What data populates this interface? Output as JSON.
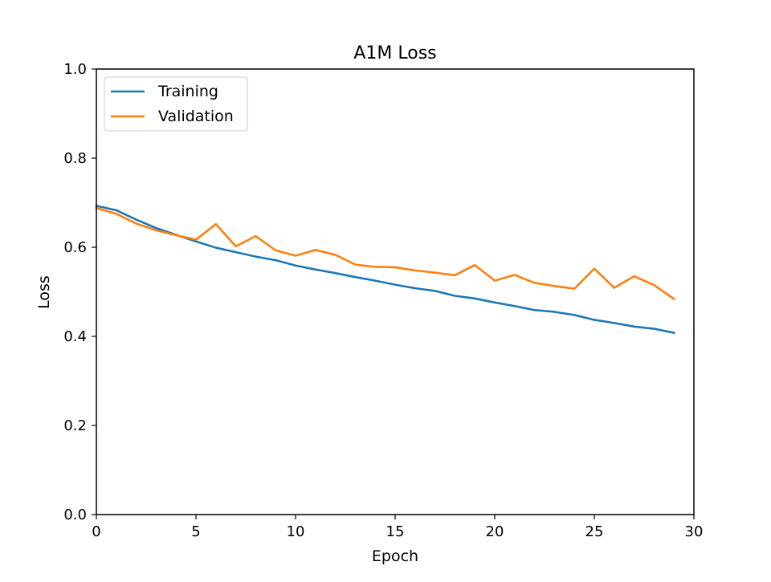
{
  "chart_data": {
    "type": "line",
    "title": "A1M Loss",
    "xlabel": "Epoch",
    "ylabel": "Loss",
    "xlim": [
      0,
      30
    ],
    "ylim": [
      0,
      1
    ],
    "xticks": [
      0,
      5,
      10,
      15,
      20,
      25,
      30
    ],
    "yticks": [
      0.0,
      0.2,
      0.4,
      0.6,
      0.8,
      1.0
    ],
    "xtick_labels": [
      "0",
      "5",
      "10",
      "15",
      "20",
      "25",
      "30"
    ],
    "ytick_labels": [
      "0.0",
      "0.2",
      "0.4",
      "0.6",
      "0.8",
      "1.0"
    ],
    "grid": false,
    "legend_position": "top-left",
    "x": [
      0,
      1,
      2,
      3,
      4,
      5,
      6,
      7,
      8,
      9,
      10,
      11,
      12,
      13,
      14,
      15,
      16,
      17,
      18,
      19,
      20,
      21,
      22,
      23,
      24,
      25,
      26,
      27,
      28,
      29
    ],
    "series": [
      {
        "name": "Training",
        "color": "#1f77b4",
        "values": [
          0.693,
          0.683,
          0.662,
          0.643,
          0.628,
          0.613,
          0.599,
          0.589,
          0.579,
          0.571,
          0.559,
          0.55,
          0.542,
          0.533,
          0.525,
          0.516,
          0.508,
          0.502,
          0.491,
          0.485,
          0.476,
          0.468,
          0.459,
          0.455,
          0.448,
          0.437,
          0.43,
          0.422,
          0.417,
          0.408
        ]
      },
      {
        "name": "Validation",
        "color": "#ff7f0e",
        "values": [
          0.688,
          0.675,
          0.653,
          0.638,
          0.627,
          0.617,
          0.652,
          0.602,
          0.625,
          0.593,
          0.581,
          0.594,
          0.583,
          0.561,
          0.556,
          0.555,
          0.548,
          0.543,
          0.537,
          0.56,
          0.525,
          0.538,
          0.52,
          0.513,
          0.507,
          0.552,
          0.509,
          0.535,
          0.515,
          0.484
        ]
      }
    ]
  }
}
